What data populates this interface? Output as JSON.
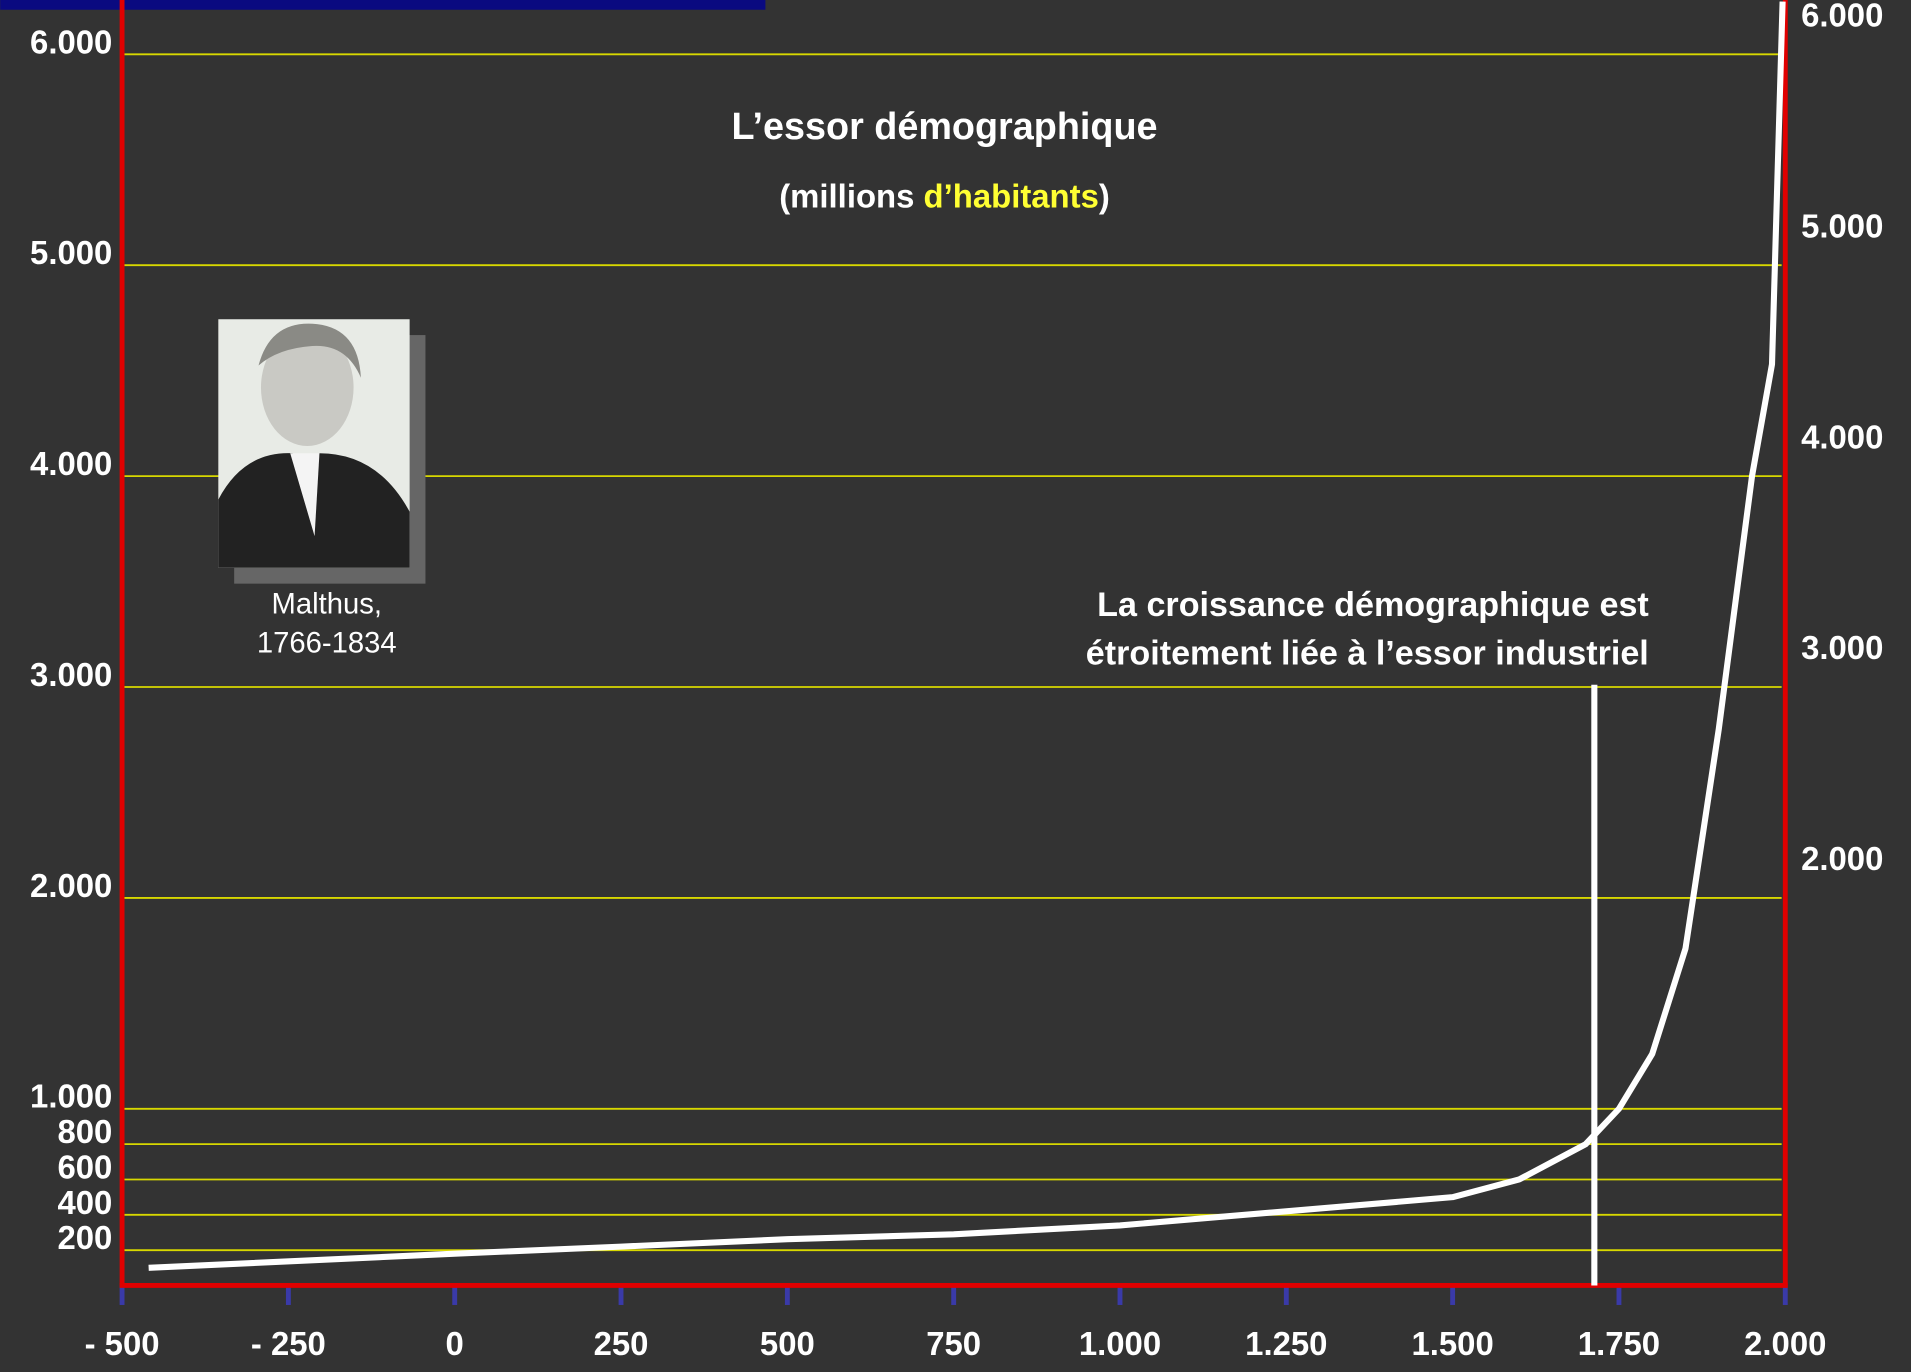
{
  "chart_data": {
    "type": "line",
    "title": "L’essor démographique",
    "subtitle": {
      "before": "(millions ",
      "highlight": "d’habitants",
      "after": ")"
    },
    "annotation": [
      "La croissance démographique est",
      "étroitement liée à l’essor industriel"
    ],
    "annotation_line_x": 1713,
    "portrait_caption": [
      "Malthus,",
      "1766-1834"
    ],
    "x": [
      -460,
      0,
      250,
      500,
      750,
      1000,
      1250,
      1500,
      1600,
      1700,
      1750,
      1800,
      1850,
      1900,
      1950,
      1980,
      1996
    ],
    "values": [
      100,
      180,
      220,
      262,
      290,
      340,
      420,
      500,
      600,
      800,
      1000,
      1260,
      1760,
      2800,
      4000,
      4530,
      6250
    ],
    "color": "#ffffff",
    "xlim": [
      -500,
      2000
    ],
    "xticks": [
      {
        "value": -500,
        "label": "- 500"
      },
      {
        "value": -250,
        "label": "- 250"
      },
      0,
      250,
      500,
      750,
      {
        "value": 1000,
        "label": "1.000"
      },
      {
        "value": 1250,
        "label": "1.250"
      },
      {
        "value": 1500,
        "label": "1.500"
      },
      {
        "value": 1750,
        "label": "1.750"
      },
      {
        "value": 2000,
        "label": "2.000"
      }
    ],
    "ylim": [
      0,
      6250
    ],
    "yticks": [
      200,
      400,
      600,
      800,
      {
        "value": 1000,
        "label": "1.000"
      },
      {
        "value": 2000,
        "label": "2.000"
      },
      {
        "value": 3000,
        "label": "3.000"
      },
      {
        "value": 4000,
        "label": "4.000"
      },
      {
        "value": 5000,
        "label": "5.000"
      },
      {
        "value": 6000,
        "label": "6.000"
      }
    ],
    "y2lim": [
      0,
      6250
    ],
    "y2ticks": [
      {
        "value": 2000,
        "label": "2.000"
      },
      {
        "value": 3000,
        "label": "3.000"
      },
      {
        "value": 4000,
        "label": "4.000"
      },
      {
        "value": 5000,
        "label": "5.000"
      },
      {
        "value": 6000,
        "label": "6.000"
      }
    ],
    "grid": true,
    "grid_color": "#d8d800",
    "axis_color": "#e00000"
  }
}
